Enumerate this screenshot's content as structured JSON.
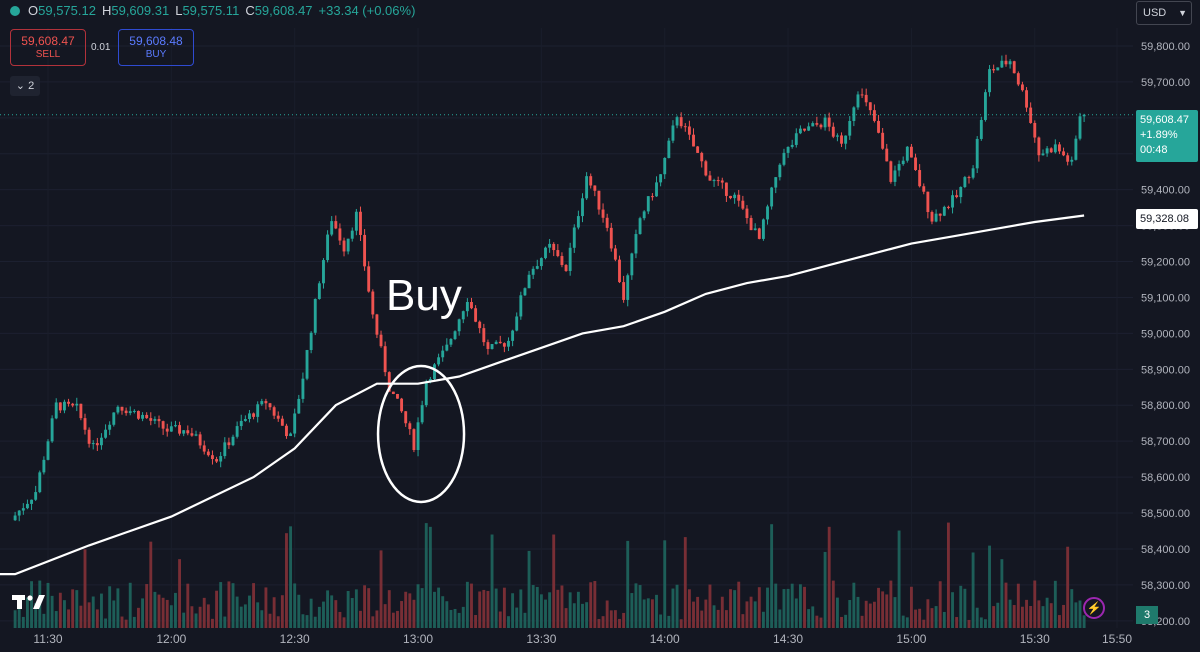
{
  "ohlc": {
    "o_label": "O",
    "o": "59,575.12",
    "h_label": "H",
    "h": "59,609.31",
    "l_label": "L",
    "l": "59,575.11",
    "c_label": "C",
    "c": "59,608.47",
    "change": "+33.34 (+0.06%)"
  },
  "trade": {
    "sell_price": "59,608.47",
    "sell_label": "SELL",
    "spread": "0.01",
    "buy_price": "59,608.48",
    "buy_label": "BUY"
  },
  "indicators_count": "2",
  "currency": "USD",
  "last_price": {
    "price": "59,608.47",
    "change_pct": "+1.89%",
    "countdown": "00:48"
  },
  "ma_value": "59,328.08",
  "volume_badge": "3",
  "annotation": "Buy",
  "colors": {
    "up": "#26a69a",
    "down": "#ef5350",
    "background": "#141722",
    "ma": "#ffffff"
  },
  "icons": [
    "tradingview-logo-icon",
    "chevron-down-icon",
    "lightning-icon"
  ],
  "chart_data": {
    "type": "candlestick",
    "x_ticks": [
      "11:30",
      "12:00",
      "12:30",
      "13:00",
      "13:30",
      "14:00",
      "14:30",
      "15:00",
      "15:30",
      "15:50"
    ],
    "y_ticks": [
      58200,
      58300,
      58400,
      58500,
      58600,
      58700,
      58800,
      58900,
      59000,
      59100,
      59200,
      59300,
      59400,
      59500,
      59600,
      59700,
      59800
    ],
    "y_tick_labels": [
      "58,200.00",
      "58,300.00",
      "58,400.00",
      "58,500.00",
      "58,600.00",
      "58,700.00",
      "58,800.00",
      "58,900.00",
      "59,000.00",
      "59,100.00",
      "59,200.00",
      "59,300.00",
      "59,400.00",
      "59,500.00",
      "59,600.00",
      "59,700.00",
      "59,800.00"
    ],
    "ylim": [
      58180,
      59850
    ],
    "waypoints": [
      {
        "t": "11:22",
        "p": 58480
      },
      {
        "t": "11:28",
        "p": 58560
      },
      {
        "t": "11:33",
        "p": 58800
      },
      {
        "t": "11:38",
        "p": 58790
      },
      {
        "t": "11:42",
        "p": 58680
      },
      {
        "t": "11:48",
        "p": 58800
      },
      {
        "t": "11:54",
        "p": 58770
      },
      {
        "t": "12:00",
        "p": 58730
      },
      {
        "t": "12:05",
        "p": 58730
      },
      {
        "t": "12:12",
        "p": 58650
      },
      {
        "t": "12:18",
        "p": 58750
      },
      {
        "t": "12:24",
        "p": 58810
      },
      {
        "t": "12:30",
        "p": 58710
      },
      {
        "t": "12:33",
        "p": 58880
      },
      {
        "t": "12:37",
        "p": 59150
      },
      {
        "t": "12:40",
        "p": 59320
      },
      {
        "t": "12:43",
        "p": 59240
      },
      {
        "t": "12:46",
        "p": 59330
      },
      {
        "t": "12:50",
        "p": 59050
      },
      {
        "t": "12:54",
        "p": 58850
      },
      {
        "t": "12:57",
        "p": 58780
      },
      {
        "t": "13:00",
        "p": 58690
      },
      {
        "t": "13:03",
        "p": 58870
      },
      {
        "t": "13:08",
        "p": 58960
      },
      {
        "t": "13:13",
        "p": 59100
      },
      {
        "t": "13:18",
        "p": 58950
      },
      {
        "t": "13:23",
        "p": 58980
      },
      {
        "t": "13:28",
        "p": 59170
      },
      {
        "t": "13:33",
        "p": 59240
      },
      {
        "t": "13:37",
        "p": 59180
      },
      {
        "t": "13:42",
        "p": 59440
      },
      {
        "t": "13:47",
        "p": 59300
      },
      {
        "t": "13:51",
        "p": 59100
      },
      {
        "t": "13:55",
        "p": 59320
      },
      {
        "t": "14:00",
        "p": 59440
      },
      {
        "t": "14:04",
        "p": 59610
      },
      {
        "t": "14:08",
        "p": 59520
      },
      {
        "t": "14:12",
        "p": 59430
      },
      {
        "t": "14:18",
        "p": 59380
      },
      {
        "t": "14:24",
        "p": 59260
      },
      {
        "t": "14:29",
        "p": 59480
      },
      {
        "t": "14:34",
        "p": 59560
      },
      {
        "t": "14:40",
        "p": 59590
      },
      {
        "t": "14:44",
        "p": 59520
      },
      {
        "t": "14:48",
        "p": 59680
      },
      {
        "t": "14:52",
        "p": 59590
      },
      {
        "t": "14:56",
        "p": 59430
      },
      {
        "t": "15:00",
        "p": 59510
      },
      {
        "t": "15:06",
        "p": 59320
      },
      {
        "t": "15:12",
        "p": 59380
      },
      {
        "t": "15:16",
        "p": 59470
      },
      {
        "t": "15:20",
        "p": 59730
      },
      {
        "t": "15:25",
        "p": 59760
      },
      {
        "t": "15:29",
        "p": 59640
      },
      {
        "t": "15:32",
        "p": 59500
      },
      {
        "t": "15:36",
        "p": 59520
      },
      {
        "t": "15:40",
        "p": 59470
      },
      {
        "t": "15:42",
        "p": 59608
      }
    ],
    "ma_line": [
      {
        "t": "11:22",
        "p": 58330
      },
      {
        "t": "11:40",
        "p": 58410
      },
      {
        "t": "12:00",
        "p": 58490
      },
      {
        "t": "12:20",
        "p": 58600
      },
      {
        "t": "12:30",
        "p": 58680
      },
      {
        "t": "12:40",
        "p": 58800
      },
      {
        "t": "12:50",
        "p": 58860
      },
      {
        "t": "13:00",
        "p": 58860
      },
      {
        "t": "13:10",
        "p": 58880
      },
      {
        "t": "13:20",
        "p": 58920
      },
      {
        "t": "13:30",
        "p": 58960
      },
      {
        "t": "13:40",
        "p": 59000
      },
      {
        "t": "13:50",
        "p": 59020
      },
      {
        "t": "14:00",
        "p": 59060
      },
      {
        "t": "14:10",
        "p": 59110
      },
      {
        "t": "14:20",
        "p": 59140
      },
      {
        "t": "14:30",
        "p": 59160
      },
      {
        "t": "14:40",
        "p": 59190
      },
      {
        "t": "14:50",
        "p": 59220
      },
      {
        "t": "15:00",
        "p": 59250
      },
      {
        "t": "15:10",
        "p": 59270
      },
      {
        "t": "15:20",
        "p": 59290
      },
      {
        "t": "15:30",
        "p": 59310
      },
      {
        "t": "15:42",
        "p": 59328.08
      }
    ],
    "current_price": 59608.47,
    "ma_current": 59328.08,
    "annotation_circle": {
      "t": "13:00",
      "p": 58720
    }
  }
}
